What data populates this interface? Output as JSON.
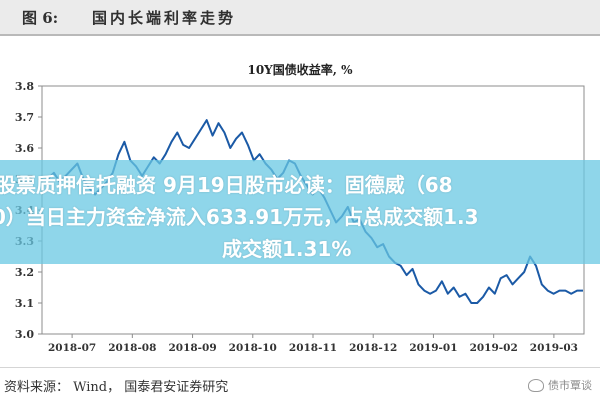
{
  "figure": {
    "label": "图 6:",
    "title": "国内长端利率走势"
  },
  "chart_data": {
    "type": "line",
    "title": "10Y国债收益率, %",
    "xlabel": "",
    "ylabel": "",
    "ylim": [
      3.0,
      3.8
    ],
    "yticks": [
      "3.0",
      "3.1",
      "3.2",
      "3.3",
      "3.4",
      "3.5",
      "3.6",
      "3.7",
      "3.8"
    ],
    "xticks": [
      "2018-07",
      "2018-08",
      "2018-09",
      "2018-10",
      "2018-11",
      "2018-12",
      "2019-01",
      "2019-02",
      "2019-03"
    ],
    "grid": false,
    "series": [
      {
        "name": "10Y国债收益率",
        "color": "#1b5aa6",
        "values": [
          3.5,
          3.52,
          3.49,
          3.51,
          3.53,
          3.55,
          3.5,
          3.47,
          3.45,
          3.47,
          3.49,
          3.52,
          3.58,
          3.62,
          3.56,
          3.54,
          3.51,
          3.54,
          3.57,
          3.55,
          3.58,
          3.62,
          3.65,
          3.61,
          3.6,
          3.63,
          3.66,
          3.69,
          3.64,
          3.68,
          3.65,
          3.6,
          3.63,
          3.65,
          3.61,
          3.56,
          3.58,
          3.55,
          3.53,
          3.5,
          3.52,
          3.56,
          3.55,
          3.51,
          3.48,
          3.45,
          3.47,
          3.44,
          3.4,
          3.36,
          3.38,
          3.41,
          3.36,
          3.37,
          3.33,
          3.31,
          3.28,
          3.29,
          3.25,
          3.23,
          3.22,
          3.19,
          3.21,
          3.16,
          3.14,
          3.13,
          3.14,
          3.17,
          3.13,
          3.15,
          3.12,
          3.13,
          3.1,
          3.1,
          3.12,
          3.15,
          3.13,
          3.18,
          3.19,
          3.16,
          3.18,
          3.2,
          3.25,
          3.22,
          3.16,
          3.14,
          3.13,
          3.14,
          3.14,
          3.13,
          3.14,
          3.14
        ]
      }
    ]
  },
  "overlay": {
    "line1": "股票质押信托融资 9月19日股市必读：固德威（68",
    "line2": "0）当日主力资金净流入633.91万元，占总成交额1.3",
    "line3": "成交额1.31%"
  },
  "footer": {
    "source": "资料来源： Wind， 国泰君安证券研究",
    "watermark": "债市覃谈"
  }
}
